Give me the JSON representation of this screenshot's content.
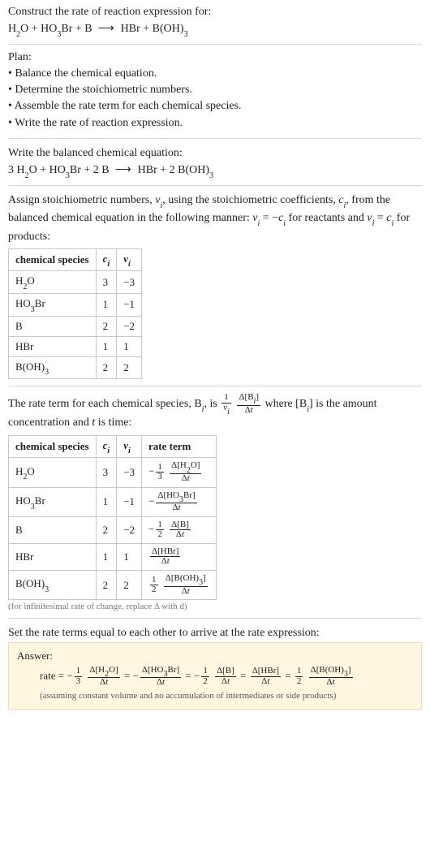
{
  "colors": {
    "text": "#222222",
    "border": "#d8d8d8",
    "table_border": "#c7c7c7",
    "answer_bg": "#fff7e0",
    "answer_border": "#e8dcb0",
    "footnote": "#777777"
  },
  "typography": {
    "body_fontsize_pt": 11,
    "footnote_fontsize_pt": 8,
    "font_family": "Georgia / Times-like serif"
  },
  "section1": {
    "prompt": "Construct the rate of reaction expression for:",
    "equation_html": "H<span class='sub'>2</span>O + HO<span class='sub'>3</span>Br + B &nbsp;<span class='arrow'>&#10230;</span>&nbsp; HBr + B(OH)<span class='sub'>3</span>"
  },
  "section2": {
    "heading": "Plan:",
    "bullets": [
      "Balance the chemical equation.",
      "Determine the stoichiometric numbers.",
      "Assemble the rate term for each chemical species.",
      "Write the rate of reaction expression."
    ]
  },
  "section3": {
    "heading": "Write the balanced chemical equation:",
    "equation_html": "3 H<span class='sub'>2</span>O + HO<span class='sub'>3</span>Br + 2 B &nbsp;<span class='arrow'>&#10230;</span>&nbsp; HBr + 2 B(OH)<span class='sub'>3</span>"
  },
  "section4": {
    "intro_html": "Assign stoichiometric numbers, <span class='ital'>ν<span class='sub'>i</span></span>, using the stoichiometric coefficients, <span class='ital'>c<span class='sub'>i</span></span>, from the balanced chemical equation in the following manner: <span class='ital'>ν<span class='sub'>i</span></span> = &minus;<span class='ital'>c<span class='sub'>i</span></span> for reactants and <span class='ital'>ν<span class='sub'>i</span></span> = <span class='ital'>c<span class='sub'>i</span></span> for products:",
    "columns": [
      "chemical species",
      "<span class='ital'>c<span class='sub'>i</span></span>",
      "<span class='ital'>ν<span class='sub'>i</span></span>"
    ],
    "rows": [
      [
        "H<span class='sub'>2</span>O",
        "3",
        "&minus;3"
      ],
      [
        "HO<span class='sub'>3</span>Br",
        "1",
        "&minus;1"
      ],
      [
        "B",
        "2",
        "&minus;2"
      ],
      [
        "HBr",
        "1",
        "1"
      ],
      [
        "B(OH)<span class='sub'>3</span>",
        "2",
        "2"
      ]
    ]
  },
  "section5": {
    "intro_html": "The rate term for each chemical species, B<span class='sub ital'>i</span>, is <span class='frac'><span class='num'>1</span><span class='den'><span class='ital'>ν<span class='sub'>i</span></span></span></span> <span class='frac'><span class='num'>&Delta;[B<span class='sub ital'>i</span>]</span><span class='den'>&Delta;<span class='ital'>t</span></span></span> where [B<span class='sub ital'>i</span>] is the amount concentration and <span class='ital'>t</span> is time:",
    "columns": [
      "chemical species",
      "<span class='ital'>c<span class='sub'>i</span></span>",
      "<span class='ital'>ν<span class='sub'>i</span></span>",
      "rate term"
    ],
    "rows": [
      [
        "H<span class='sub'>2</span>O",
        "3",
        "&minus;3",
        "&minus;<span class='frac'><span class='num'>1</span><span class='den'>3</span></span> <span class='frac'><span class='num'>&Delta;[H<span class='sub'>2</span>O]</span><span class='den'>&Delta;<span class='ital'>t</span></span></span>"
      ],
      [
        "HO<span class='sub'>3</span>Br",
        "1",
        "&minus;1",
        "&minus;<span class='frac'><span class='num'>&Delta;[HO<span class='sub'>3</span>Br]</span><span class='den'>&Delta;<span class='ital'>t</span></span></span>"
      ],
      [
        "B",
        "2",
        "&minus;2",
        "&minus;<span class='frac'><span class='num'>1</span><span class='den'>2</span></span> <span class='frac'><span class='num'>&Delta;[B]</span><span class='den'>&Delta;<span class='ital'>t</span></span></span>"
      ],
      [
        "HBr",
        "1",
        "1",
        "<span class='frac'><span class='num'>&Delta;[HBr]</span><span class='den'>&Delta;<span class='ital'>t</span></span></span>"
      ],
      [
        "B(OH)<span class='sub'>3</span>",
        "2",
        "2",
        "<span class='frac'><span class='num'>1</span><span class='den'>2</span></span> <span class='frac'><span class='num'>&Delta;[B(OH)<span class='sub'>3</span>]</span><span class='den'>&Delta;<span class='ital'>t</span></span></span>"
      ]
    ],
    "footnote": "(for infinitesimal rate of change, replace Δ with d)"
  },
  "section6": {
    "intro": "Set the rate terms equal to each other to arrive at the rate expression:",
    "answer_label": "Answer:",
    "answer_html": "rate = &minus;<span class='frac'><span class='num'>1</span><span class='den'>3</span></span> <span class='frac'><span class='num'>&Delta;[H<span class='sub'>2</span>O]</span><span class='den'>&Delta;<span class='ital'>t</span></span></span> = &minus;<span class='frac'><span class='num'>&Delta;[HO<span class='sub'>3</span>Br]</span><span class='den'>&Delta;<span class='ital'>t</span></span></span> = &minus;<span class='frac'><span class='num'>1</span><span class='den'>2</span></span> <span class='frac'><span class='num'>&Delta;[B]</span><span class='den'>&Delta;<span class='ital'>t</span></span></span> = <span class='frac'><span class='num'>&Delta;[HBr]</span><span class='den'>&Delta;<span class='ital'>t</span></span></span> = <span class='frac'><span class='num'>1</span><span class='den'>2</span></span> <span class='frac'><span class='num'>&Delta;[B(OH)<span class='sub'>3</span>]</span><span class='den'>&Delta;<span class='ital'>t</span></span></span>",
    "answer_note": "(assuming constant volume and no accumulation of intermediates or side products)"
  }
}
